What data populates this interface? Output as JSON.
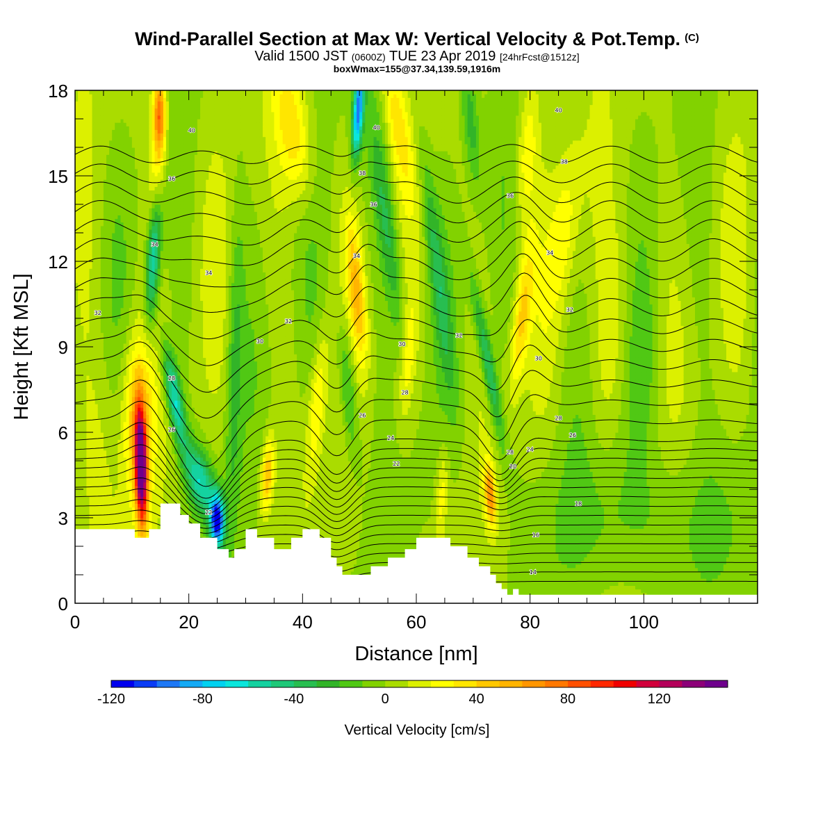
{
  "title": {
    "main": "Wind-Parallel Section at Max W: Vertical Velocity & Pot.Temp.",
    "mark": "(C)",
    "valid_a": "Valid 1500 JST ",
    "valid_b": "(0600Z)",
    "valid_c": " TUE 23 Apr 2019 ",
    "valid_d": "[24hrFcst@1512z]",
    "box": "boxWmax=155@37.34,139.59,1916m"
  },
  "chart_data": {
    "type": "heatmap",
    "xlabel": "Distance [nm]",
    "ylabel": "Height [Kft MSL]",
    "xlim": [
      0,
      120
    ],
    "ylim": [
      0,
      18
    ],
    "x_ticks": [
      "0",
      "20",
      "40",
      "60",
      "80",
      "100"
    ],
    "y_ticks": [
      "0",
      "3",
      "6",
      "9",
      "12",
      "15",
      "18"
    ],
    "colorbar": {
      "title": "Vertical Velocity [cm/s]",
      "range": [
        -120,
        150
      ],
      "step": 10,
      "tick_labels": [
        "-120",
        "-80",
        "-40",
        "0",
        "40",
        "80",
        "120"
      ],
      "tick_values": [
        -120,
        -80,
        -40,
        0,
        40,
        80,
        120
      ],
      "colors": [
        "#0000ee",
        "#0a3cf5",
        "#1e78f5",
        "#14aaf5",
        "#00d2f0",
        "#0ae6dc",
        "#14d2a0",
        "#1ec878",
        "#28be50",
        "#32b428",
        "#50c814",
        "#82d200",
        "#aadc00",
        "#dcf000",
        "#ffff00",
        "#ffe600",
        "#ffc800",
        "#ffb400",
        "#ff9600",
        "#ff7800",
        "#ff5000",
        "#ff2800",
        "#f00000",
        "#d2003c",
        "#b4005a",
        "#8c0078",
        "#6e008c"
      ]
    },
    "updrafts": [
      {
        "x": 11.5,
        "z_top": 8.5,
        "w_peak": 150
      },
      {
        "x": 14.5,
        "z_top": 18.0,
        "w_peak": 70
      },
      {
        "x": 34.0,
        "z_top": 6.0,
        "w_peak": 50
      },
      {
        "x": 50.0,
        "z_top": 12.0,
        "w_peak": 40
      },
      {
        "x": 73.0,
        "z_top": 5.0,
        "w_peak": 65
      }
    ],
    "downdrafts": [
      {
        "x": 25.0,
        "z": 2.8,
        "w_peak": -120
      },
      {
        "x": 14.0,
        "z": 13.0,
        "w_peak": -80
      },
      {
        "x": 49.5,
        "z": 17.5,
        "w_peak": -95
      }
    ],
    "theta_contour_labels": [
      {
        "value": "14",
        "x": 80.5,
        "z": 1.1
      },
      {
        "value": "16",
        "x": 81.0,
        "z": 2.4
      },
      {
        "value": "18",
        "x": 88.5,
        "z": 3.5
      },
      {
        "value": "20",
        "x": 77.0,
        "z": 4.8
      },
      {
        "value": "22",
        "x": 56.5,
        "z": 4.9
      },
      {
        "value": "22",
        "x": 23.5,
        "z": 3.2
      },
      {
        "value": "24",
        "x": 55.5,
        "z": 5.8
      },
      {
        "value": "24",
        "x": 80.0,
        "z": 5.4
      },
      {
        "value": "26",
        "x": 50.5,
        "z": 6.6
      },
      {
        "value": "26",
        "x": 17.0,
        "z": 6.1
      },
      {
        "value": "26",
        "x": 87.5,
        "z": 5.9
      },
      {
        "value": "28",
        "x": 58.0,
        "z": 7.4
      },
      {
        "value": "28",
        "x": 85.0,
        "z": 6.5
      },
      {
        "value": "28",
        "x": 76.5,
        "z": 5.3
      },
      {
        "value": "28",
        "x": 17.0,
        "z": 7.9
      },
      {
        "value": "30",
        "x": 32.5,
        "z": 9.2
      },
      {
        "value": "30",
        "x": 57.5,
        "z": 9.1
      },
      {
        "value": "30",
        "x": 81.5,
        "z": 8.6
      },
      {
        "value": "32",
        "x": 4.0,
        "z": 10.2
      },
      {
        "value": "32",
        "x": 37.5,
        "z": 9.9
      },
      {
        "value": "32",
        "x": 67.5,
        "z": 9.4
      },
      {
        "value": "32",
        "x": 87.0,
        "z": 10.3
      },
      {
        "value": "34",
        "x": 23.5,
        "z": 11.6
      },
      {
        "value": "34",
        "x": 49.5,
        "z": 12.2
      },
      {
        "value": "34",
        "x": 83.5,
        "z": 12.3
      },
      {
        "value": "34",
        "x": 14.0,
        "z": 12.6
      },
      {
        "value": "36",
        "x": 17.0,
        "z": 14.9
      },
      {
        "value": "36",
        "x": 52.5,
        "z": 14.0
      },
      {
        "value": "36",
        "x": 76.5,
        "z": 14.3
      },
      {
        "value": "38",
        "x": 50.5,
        "z": 15.1
      },
      {
        "value": "38",
        "x": 86.0,
        "z": 15.5
      },
      {
        "value": "40",
        "x": 20.5,
        "z": 16.6
      },
      {
        "value": "40",
        "x": 53.0,
        "z": 16.7
      },
      {
        "value": "40",
        "x": 85.0,
        "z": 17.3
      }
    ],
    "terrain": {
      "x": [
        0,
        10.5,
        10.5,
        13,
        13,
        15,
        15,
        18.5,
        18.5,
        20,
        20,
        22,
        22,
        25,
        25,
        27,
        27,
        28,
        28,
        30,
        30,
        32,
        32,
        35,
        35,
        38,
        38,
        40,
        40,
        43,
        43,
        45,
        45,
        46,
        46,
        47,
        47,
        50,
        50,
        52,
        52,
        55,
        55,
        58,
        58,
        60,
        60,
        63,
        63,
        66,
        66,
        69,
        69,
        71,
        71,
        73,
        73,
        74,
        74,
        75,
        75,
        76,
        76,
        77,
        77,
        78,
        78,
        120
      ],
      "z": [
        2.6,
        2.6,
        2.3,
        2.3,
        2.6,
        2.6,
        3.5,
        3.5,
        3.1,
        3.1,
        2.8,
        2.8,
        2.3,
        2.3,
        1.9,
        1.9,
        1.6,
        1.6,
        1.9,
        1.9,
        2.6,
        2.6,
        2.3,
        2.3,
        1.9,
        1.9,
        2.3,
        2.3,
        2.6,
        2.6,
        2.3,
        2.3,
        1.6,
        1.6,
        1.3,
        1.3,
        1.0,
        1.0,
        1.0,
        1.0,
        1.3,
        1.3,
        1.6,
        1.6,
        1.9,
        1.9,
        2.3,
        2.3,
        2.3,
        2.3,
        2.0,
        2.0,
        1.6,
        1.6,
        1.3,
        1.3,
        1.0,
        1.0,
        0.7,
        0.7,
        0.5,
        0.5,
        0.3,
        0.3,
        0.5,
        0.5,
        0.3,
        0.3
      ]
    }
  }
}
